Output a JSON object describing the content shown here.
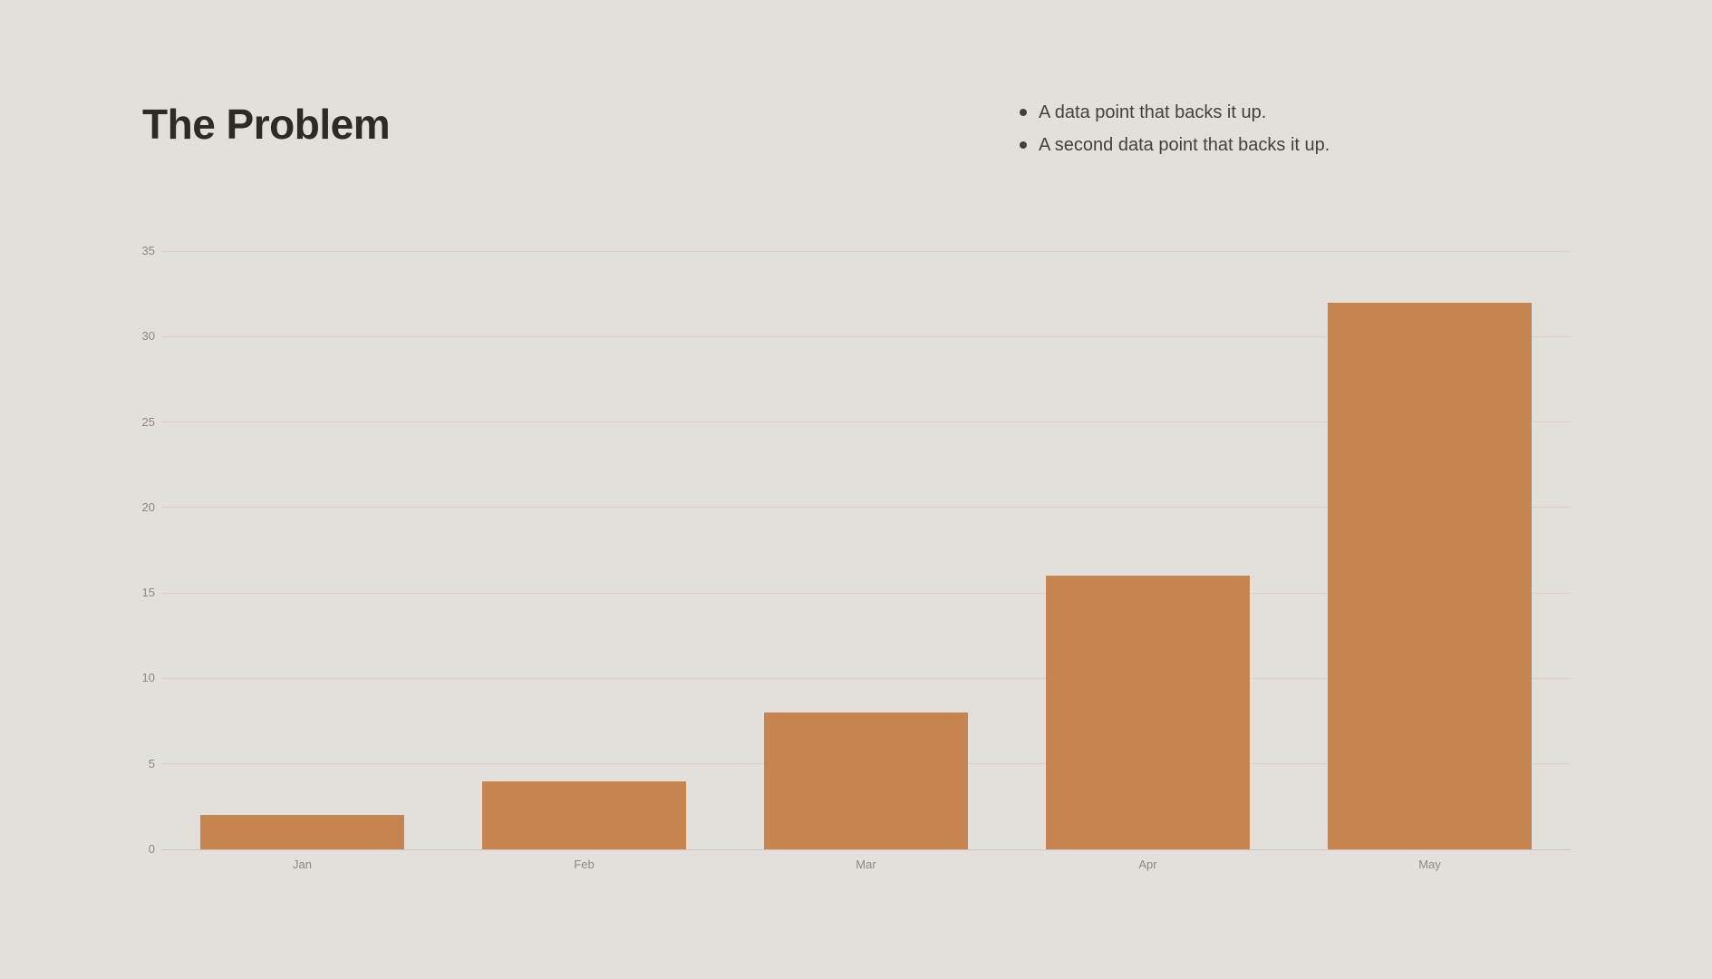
{
  "slide": {
    "title": "The Problem",
    "bullets": [
      "A data point that backs it up.",
      "A second data point that backs it up."
    ]
  },
  "colors": {
    "background": "#e3dfda",
    "title_text": "#2d2b28",
    "bullet_text": "#44413d",
    "bar": "#c6854f",
    "gridline": "#d6d1cb",
    "zero_line": "#ccc6c0",
    "axis_label": "#8b8781"
  },
  "chart_data": {
    "type": "bar",
    "categories": [
      "Jan",
      "Feb",
      "Mar",
      "Apr",
      "May"
    ],
    "values": [
      2,
      4,
      8,
      16,
      32
    ],
    "title": "",
    "xlabel": "",
    "ylabel": "",
    "ylim": [
      0,
      35
    ],
    "yticks": [
      0,
      5,
      10,
      15,
      20,
      25,
      30,
      35
    ],
    "grid": true,
    "legend": false
  }
}
